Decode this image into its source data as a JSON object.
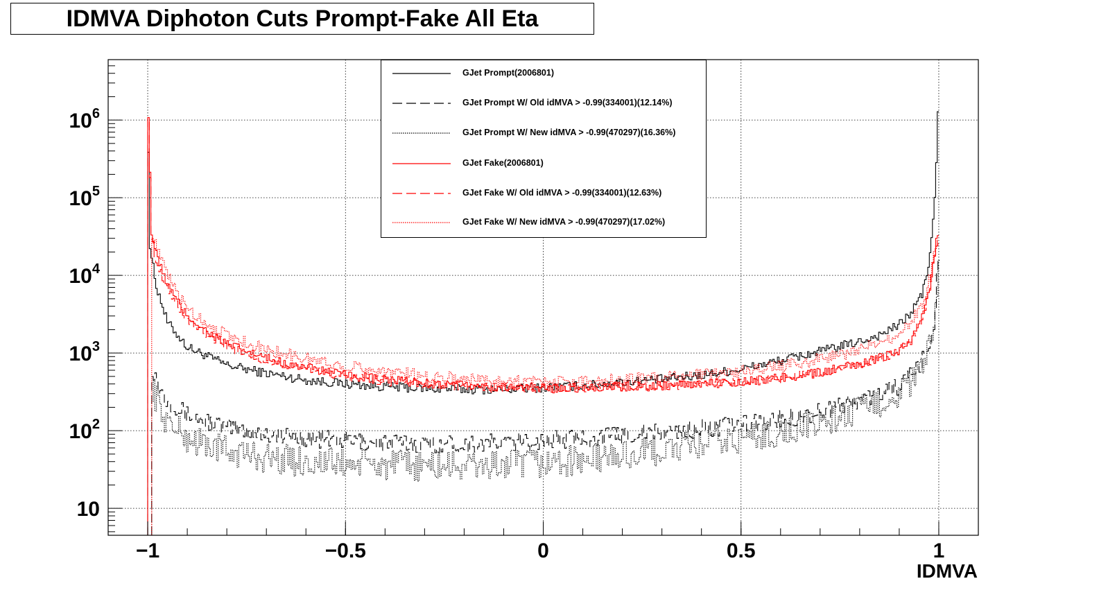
{
  "title": "IDMVA Diphoton Cuts Prompt-Fake All Eta",
  "chart_data": {
    "type": "line",
    "title": "IDMVA Diphoton Cuts Prompt-Fake All Eta",
    "xlabel": "IDMVA",
    "ylabel": "",
    "xlim": [
      -1.1,
      1.1
    ],
    "ylim": [
      4.5,
      6000000
    ],
    "yscale": "log",
    "grid": true,
    "legend_position": "top-center",
    "x_ticks": [
      {
        "value": -1,
        "label": "−1"
      },
      {
        "value": -0.5,
        "label": "−0.5"
      },
      {
        "value": 0,
        "label": "0"
      },
      {
        "value": 0.5,
        "label": "0.5"
      },
      {
        "value": 1,
        "label": "1"
      }
    ],
    "y_ticks": [
      {
        "value": 10,
        "base": "10",
        "exp": ""
      },
      {
        "value": 100,
        "base": "10",
        "exp": "2"
      },
      {
        "value": 1000,
        "base": "10",
        "exp": "3"
      },
      {
        "value": 10000,
        "base": "10",
        "exp": "4"
      },
      {
        "value": 100000,
        "base": "10",
        "exp": "5"
      },
      {
        "value": 1000000,
        "base": "10",
        "exp": "6"
      }
    ],
    "series": [
      {
        "name": "GJet Prompt(2006801)",
        "color": "#000000",
        "dash": "solid",
        "noise": 0.06,
        "points": [
          [
            -1.0,
            3000000
          ],
          [
            -0.995,
            25000
          ],
          [
            -0.98,
            8000
          ],
          [
            -0.95,
            2500
          ],
          [
            -0.9,
            1200
          ],
          [
            -0.8,
            700
          ],
          [
            -0.7,
            550
          ],
          [
            -0.6,
            450
          ],
          [
            -0.5,
            400
          ],
          [
            -0.4,
            370
          ],
          [
            -0.3,
            350
          ],
          [
            -0.2,
            340
          ],
          [
            -0.1,
            340
          ],
          [
            0.0,
            360
          ],
          [
            0.1,
            380
          ],
          [
            0.2,
            420
          ],
          [
            0.3,
            460
          ],
          [
            0.4,
            520
          ],
          [
            0.5,
            620
          ],
          [
            0.6,
            800
          ],
          [
            0.7,
            1050
          ],
          [
            0.8,
            1400
          ],
          [
            0.85,
            1700
          ],
          [
            0.9,
            2300
          ],
          [
            0.93,
            3300
          ],
          [
            0.96,
            6000
          ],
          [
            0.98,
            20000
          ],
          [
            0.99,
            100000
          ],
          [
            0.995,
            400000
          ],
          [
            1.0,
            3000000
          ]
        ]
      },
      {
        "name": "GJet Prompt W/ Old idMVA > -0.99(334001)(12.14%)",
        "color": "#000000",
        "dash": "long",
        "noise": 0.12,
        "points": [
          [
            -0.99,
            700
          ],
          [
            -0.97,
            350
          ],
          [
            -0.95,
            250
          ],
          [
            -0.9,
            160
          ],
          [
            -0.8,
            110
          ],
          [
            -0.7,
            90
          ],
          [
            -0.6,
            80
          ],
          [
            -0.5,
            75
          ],
          [
            -0.4,
            70
          ],
          [
            -0.3,
            68
          ],
          [
            -0.2,
            68
          ],
          [
            -0.1,
            70
          ],
          [
            0.0,
            75
          ],
          [
            0.1,
            80
          ],
          [
            0.2,
            88
          ],
          [
            0.3,
            95
          ],
          [
            0.4,
            105
          ],
          [
            0.5,
            120
          ],
          [
            0.6,
            140
          ],
          [
            0.7,
            175
          ],
          [
            0.8,
            250
          ],
          [
            0.85,
            300
          ],
          [
            0.9,
            380
          ],
          [
            0.94,
            550
          ],
          [
            0.97,
            1000
          ],
          [
            0.99,
            2500
          ],
          [
            1.0,
            20000
          ]
        ]
      },
      {
        "name": "GJet Prompt W/ New idMVA > -0.99(470297)(16.36%)",
        "color": "#000000",
        "dash": "dot",
        "noise": 0.2,
        "points": [
          [
            -0.99,
            400
          ],
          [
            -0.97,
            200
          ],
          [
            -0.95,
            130
          ],
          [
            -0.9,
            80
          ],
          [
            -0.8,
            55
          ],
          [
            -0.7,
            45
          ],
          [
            -0.6,
            40
          ],
          [
            -0.5,
            38
          ],
          [
            -0.4,
            36
          ],
          [
            -0.3,
            35
          ],
          [
            -0.2,
            35
          ],
          [
            -0.1,
            36
          ],
          [
            0.0,
            38
          ],
          [
            0.1,
            42
          ],
          [
            0.2,
            48
          ],
          [
            0.3,
            55
          ],
          [
            0.4,
            65
          ],
          [
            0.5,
            78
          ],
          [
            0.6,
            95
          ],
          [
            0.7,
            125
          ],
          [
            0.8,
            180
          ],
          [
            0.85,
            230
          ],
          [
            0.9,
            300
          ],
          [
            0.94,
            450
          ],
          [
            0.97,
            900
          ],
          [
            0.99,
            2000
          ],
          [
            1.0,
            15000
          ]
        ]
      },
      {
        "name": "GJet Fake(2006801)",
        "color": "#ff0000",
        "dash": "solid",
        "noise": 0.06,
        "points": [
          [
            -1.0,
            3000000
          ],
          [
            -0.99,
            35000
          ],
          [
            -0.98,
            20000
          ],
          [
            -0.96,
            10000
          ],
          [
            -0.93,
            5000
          ],
          [
            -0.9,
            3000
          ],
          [
            -0.85,
            1900
          ],
          [
            -0.8,
            1300
          ],
          [
            -0.7,
            850
          ],
          [
            -0.6,
            650
          ],
          [
            -0.5,
            520
          ],
          [
            -0.4,
            450
          ],
          [
            -0.3,
            410
          ],
          [
            -0.2,
            380
          ],
          [
            -0.1,
            360
          ],
          [
            0.0,
            355
          ],
          [
            0.1,
            360
          ],
          [
            0.2,
            370
          ],
          [
            0.3,
            380
          ],
          [
            0.4,
            400
          ],
          [
            0.5,
            430
          ],
          [
            0.6,
            480
          ],
          [
            0.7,
            560
          ],
          [
            0.8,
            720
          ],
          [
            0.85,
            850
          ],
          [
            0.9,
            1100
          ],
          [
            0.93,
            1500
          ],
          [
            0.96,
            3000
          ],
          [
            0.98,
            8000
          ],
          [
            0.99,
            20000
          ],
          [
            1.0,
            40000
          ]
        ]
      },
      {
        "name": "GJet Fake W/ Old idMVA > -0.99(334001)(12.63%)",
        "color": "#ff0000",
        "dash": "long",
        "noise": 0.06,
        "points": [
          [
            -1.0,
            3000000
          ],
          [
            -0.99,
            30000
          ],
          [
            -0.98,
            17000
          ],
          [
            -0.96,
            9000
          ],
          [
            -0.93,
            4500
          ],
          [
            -0.9,
            2700
          ],
          [
            -0.85,
            1700
          ],
          [
            -0.8,
            1200
          ],
          [
            -0.7,
            800
          ],
          [
            -0.6,
            620
          ],
          [
            -0.5,
            500
          ],
          [
            -0.4,
            440
          ],
          [
            -0.3,
            400
          ],
          [
            -0.2,
            370
          ],
          [
            -0.1,
            355
          ],
          [
            0.0,
            350
          ],
          [
            0.1,
            355
          ],
          [
            0.2,
            365
          ],
          [
            0.3,
            375
          ],
          [
            0.4,
            395
          ],
          [
            0.5,
            425
          ],
          [
            0.6,
            470
          ],
          [
            0.7,
            550
          ],
          [
            0.8,
            700
          ],
          [
            0.85,
            830
          ],
          [
            0.9,
            1050
          ],
          [
            0.93,
            1450
          ],
          [
            0.96,
            2800
          ],
          [
            0.98,
            7500
          ],
          [
            0.99,
            18000
          ],
          [
            1.0,
            35000
          ]
        ]
      },
      {
        "name": "GJet Fake W/ New idMVA > -0.99(470297)(17.02%)",
        "color": "#ff0000",
        "dash": "dot",
        "noise": 0.08,
        "points": [
          [
            -0.99,
            40000
          ],
          [
            -0.98,
            25000
          ],
          [
            -0.96,
            13000
          ],
          [
            -0.93,
            6500
          ],
          [
            -0.9,
            3800
          ],
          [
            -0.85,
            2400
          ],
          [
            -0.8,
            1700
          ],
          [
            -0.7,
            1100
          ],
          [
            -0.6,
            850
          ],
          [
            -0.5,
            680
          ],
          [
            -0.4,
            580
          ],
          [
            -0.3,
            510
          ],
          [
            -0.2,
            470
          ],
          [
            -0.1,
            440
          ],
          [
            0.0,
            430
          ],
          [
            0.1,
            440
          ],
          [
            0.2,
            460
          ],
          [
            0.3,
            480
          ],
          [
            0.4,
            520
          ],
          [
            0.5,
            580
          ],
          [
            0.6,
            680
          ],
          [
            0.7,
            830
          ],
          [
            0.8,
            1100
          ],
          [
            0.85,
            1350
          ],
          [
            0.9,
            1800
          ],
          [
            0.93,
            2500
          ],
          [
            0.96,
            4500
          ],
          [
            0.98,
            10000
          ],
          [
            0.99,
            20000
          ],
          [
            1.0,
            30000
          ]
        ]
      }
    ]
  }
}
